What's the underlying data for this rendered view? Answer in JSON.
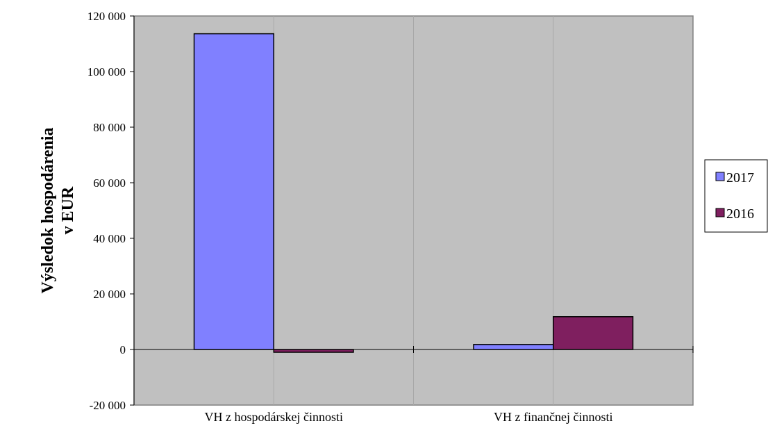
{
  "chart_data": {
    "type": "bar",
    "title": "",
    "xlabel": "",
    "ylabel_lines": [
      "Výsledok hospodárenia",
      "v EUR"
    ],
    "categories": [
      "VH z hospodárskej činnosti",
      "VH z finančnej činnosti"
    ],
    "series": [
      {
        "name": "2017",
        "values": [
          113600,
          1800
        ],
        "color": "#8080ff"
      },
      {
        "name": "2016",
        "values": [
          -1000,
          11800
        ],
        "color": "#7f1f5f"
      }
    ],
    "ylim": [
      -20000,
      120000
    ],
    "ytick_step": 20000,
    "yticks": [
      "-20 000",
      "0",
      "20 000",
      "40 000",
      "60 000",
      "80 000",
      "100 000",
      "120 000"
    ],
    "grid": "vertical",
    "plot_background": "#c0c0c0",
    "legend_position": "right"
  }
}
